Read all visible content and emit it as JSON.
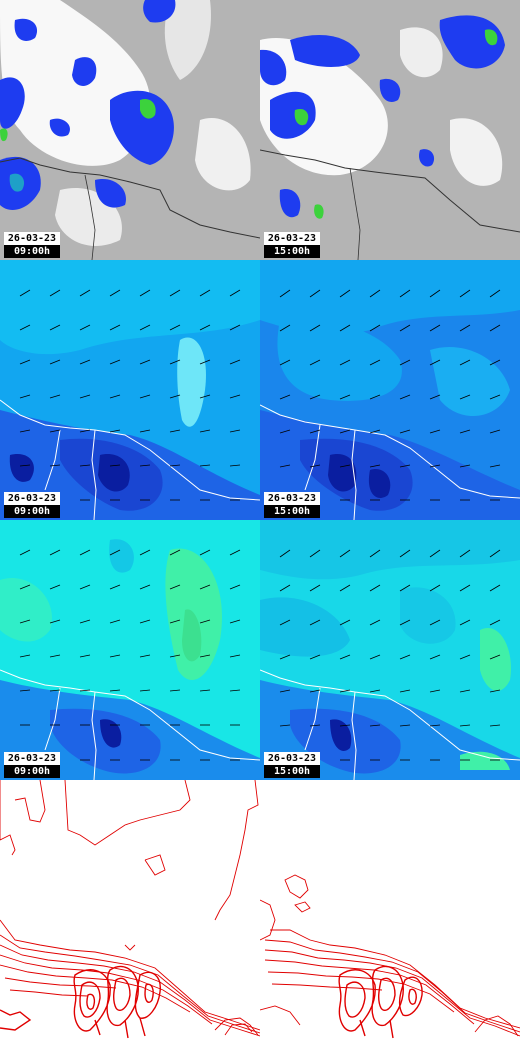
{
  "rows": [
    {
      "kind": "cloud",
      "panels": [
        {
          "date": "26-03-23",
          "time": "09:00h"
        },
        {
          "date": "26-03-23",
          "time": "15:00h"
        }
      ]
    },
    {
      "kind": "wind-low",
      "panels": [
        {
          "date": "26-03-23",
          "time": "09:00h"
        },
        {
          "date": "26-03-23",
          "time": "15:00h"
        }
      ]
    },
    {
      "kind": "wind-high",
      "panels": [
        {
          "date": "26-03-23",
          "time": "09:00h"
        },
        {
          "date": "26-03-23",
          "time": "15:00h"
        }
      ]
    },
    {
      "kind": "contours",
      "panels": [
        {},
        {}
      ]
    }
  ],
  "colors": {
    "cloud_bg": "#b4b4b4",
    "cloud_light": "#ffffff",
    "precip_blue": "#1e3cf0",
    "precip_cyan": "#1ea0c8",
    "precip_green": "#3cd23c",
    "wind_light": "#12a6f0",
    "wind_cyan": "#14d2f2",
    "wind_deep": "#1e64e6",
    "wind_darkest": "#0a1ea0",
    "wind_high_base": "#18e6e6",
    "wind_high_green": "#40f0a8",
    "contour_red": "#e00000",
    "coastline": "#ffffff",
    "arrow": "#000000"
  }
}
